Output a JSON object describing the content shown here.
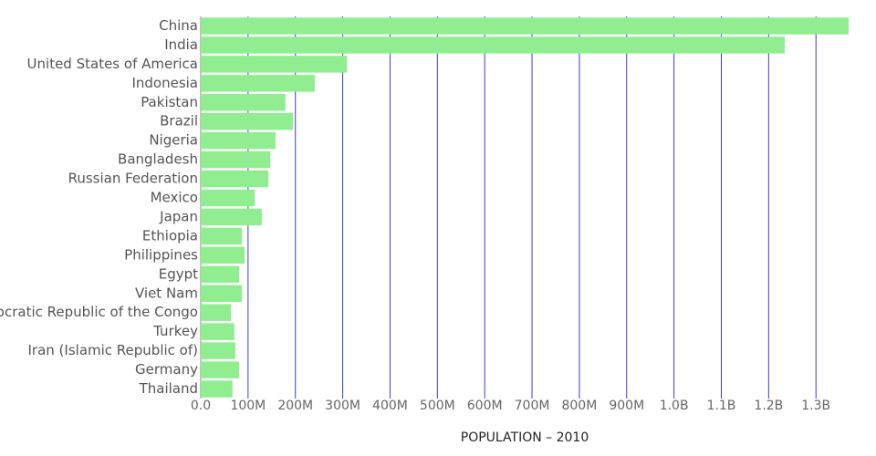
{
  "chart_data": {
    "type": "hbar",
    "categories": [
      "China",
      "India",
      "United States of America",
      "Indonesia",
      "Pakistan",
      "Brazil",
      "Nigeria",
      "Bangladesh",
      "Russian Federation",
      "Mexico",
      "Japan",
      "Ethiopia",
      "Philippines",
      "Egypt",
      "Viet Nam",
      "Democratic Republic of the Congo",
      "Turkey",
      "Iran (Islamic Republic of)",
      "Germany",
      "Thailand"
    ],
    "values": [
      1369000000,
      1234000000,
      309000000,
      241000000,
      179000000,
      195000000,
      158000000,
      147000000,
      143000000,
      114000000,
      129000000,
      87000000,
      93000000,
      81000000,
      87000000,
      64000000,
      71000000,
      73000000,
      81000000,
      67000000
    ],
    "color": "#90ee90",
    "grid_color": "#3b3bd0",
    "xlabel": "POPULATION – 2010",
    "xlim": [
      0,
      1369000000
    ],
    "xticks": [
      {
        "value": 0,
        "label": "0.0"
      },
      {
        "value": 100000000,
        "label": "100M"
      },
      {
        "value": 200000000,
        "label": "200M"
      },
      {
        "value": 300000000,
        "label": "300M"
      },
      {
        "value": 400000000,
        "label": "400M"
      },
      {
        "value": 500000000,
        "label": "500M"
      },
      {
        "value": 600000000,
        "label": "600M"
      },
      {
        "value": 700000000,
        "label": "700M"
      },
      {
        "value": 800000000,
        "label": "800M"
      },
      {
        "value": 900000000,
        "label": "900M"
      },
      {
        "value": 1000000000,
        "label": "1.0B"
      },
      {
        "value": 1100000000,
        "label": "1.1B"
      },
      {
        "value": 1200000000,
        "label": "1.2B"
      },
      {
        "value": 1300000000,
        "label": "1.3B"
      }
    ],
    "grid": true
  }
}
